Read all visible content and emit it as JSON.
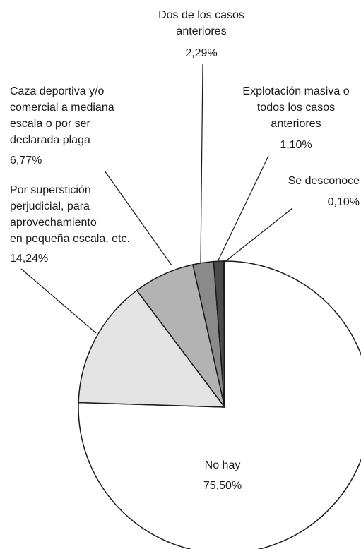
{
  "chart_data": {
    "type": "pie",
    "categories": [
      [
        "No hay"
      ],
      [
        "Por superstición",
        "perjudicial, para",
        "aprovechamiento",
        "en pequeña escala, etc."
      ],
      [
        "Caza deportiva y/o",
        "comercial a mediana",
        "escala o por ser",
        "declarada plaga"
      ],
      [
        "Dos de los casos",
        "anteriores"
      ],
      [
        "Explotación masiva o",
        "todos los casos",
        "anteriores"
      ],
      [
        "Se desconoce"
      ]
    ],
    "values": [
      75.5,
      14.24,
      6.77,
      2.29,
      1.1,
      0.1
    ],
    "value_labels": [
      "75,50%",
      "14,24%",
      "6,77%",
      "2,29%",
      "1,10%",
      "0,10%"
    ],
    "colors": [
      "#ffffff",
      "#e3e3e3",
      "#b3b3b3",
      "#8a8a8a",
      "#4a4a4a",
      "#111111"
    ]
  }
}
